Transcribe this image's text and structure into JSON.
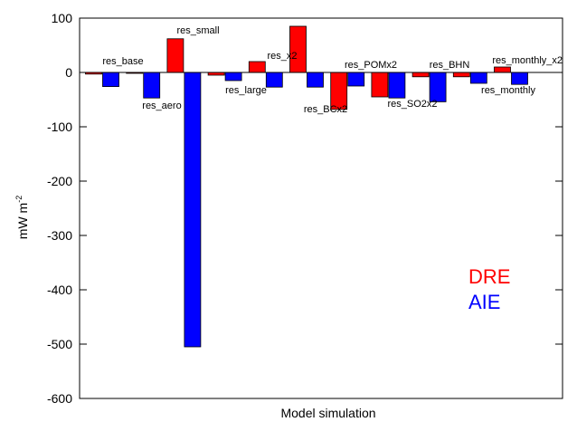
{
  "chart_data": {
    "type": "bar",
    "xlabel": "Model simulation",
    "ylabel": "mW m",
    "ylabel_superscript": "-2",
    "ylim": [
      -600,
      100
    ],
    "yticks": [
      100,
      0,
      -100,
      -200,
      -300,
      -400,
      -500,
      -600
    ],
    "grid": false,
    "legend_position": "lower-right",
    "categories": [
      "res_base",
      "res_aero",
      "res_small",
      "res_large",
      "res_x2",
      "res_BCx2",
      "res_POMx2",
      "res_SO2x2",
      "res_BHN",
      "res_monthly",
      "res_monthly_x2"
    ],
    "series": [
      {
        "name": "DRE",
        "color": "#ff0000",
        "values": [
          -3,
          0,
          62,
          -5,
          20,
          85,
          -68,
          -45,
          -8,
          -8,
          10
        ]
      },
      {
        "name": "AIE",
        "color": "#0000ff",
        "values": [
          -26,
          -47,
          -505,
          -15,
          -27,
          -27,
          -25,
          -47,
          -54,
          -20,
          -22
        ]
      }
    ]
  }
}
